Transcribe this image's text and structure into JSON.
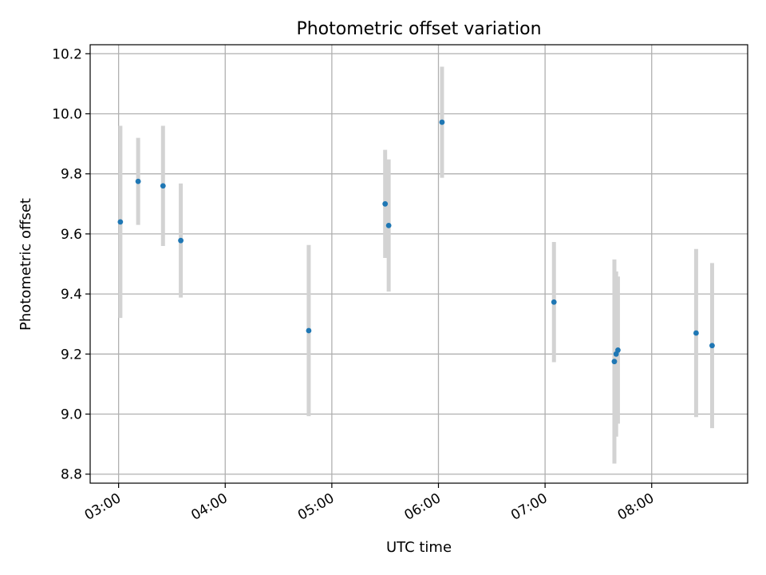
{
  "chart_data": {
    "type": "scatter",
    "title": "Photometric offset variation",
    "xlabel": "UTC time",
    "ylabel": "Photometric offset",
    "x_tick_labels": [
      "03:00",
      "04:00",
      "05:00",
      "06:00",
      "07:00",
      "08:00"
    ],
    "y_tick_labels": [
      "8.8",
      "9.0",
      "9.2",
      "9.4",
      "9.6",
      "9.8",
      "10.0",
      "10.2"
    ],
    "xlim": [
      "02:44",
      "08:54"
    ],
    "ylim": [
      8.77,
      10.23
    ],
    "grid": true,
    "legend": "none",
    "colors": {
      "points": "#1f77b4",
      "errorbars": "#d3d3d3",
      "grid": "#b0b0b0",
      "axes": "#000000"
    },
    "points": [
      {
        "x": "03:01",
        "y": 9.64,
        "err": 0.32
      },
      {
        "x": "03:11",
        "y": 9.775,
        "err": 0.145
      },
      {
        "x": "03:25",
        "y": 9.76,
        "err": 0.2
      },
      {
        "x": "03:35",
        "y": 9.578,
        "err": 0.19
      },
      {
        "x": "04:47",
        "y": 9.278,
        "err": 0.285
      },
      {
        "x": "05:30",
        "y": 9.7,
        "err": 0.18
      },
      {
        "x": "05:32",
        "y": 9.628,
        "err": 0.22
      },
      {
        "x": "06:02",
        "y": 9.972,
        "err": 0.185
      },
      {
        "x": "07:05",
        "y": 9.373,
        "err": 0.2
      },
      {
        "x": "07:39",
        "y": 9.175,
        "err": 0.34
      },
      {
        "x": "07:40",
        "y": 9.2,
        "err": 0.275
      },
      {
        "x": "07:41",
        "y": 9.213,
        "err": 0.245
      },
      {
        "x": "08:25",
        "y": 9.27,
        "err": 0.28
      },
      {
        "x": "08:34",
        "y": 9.228,
        "err": 0.275
      }
    ]
  }
}
